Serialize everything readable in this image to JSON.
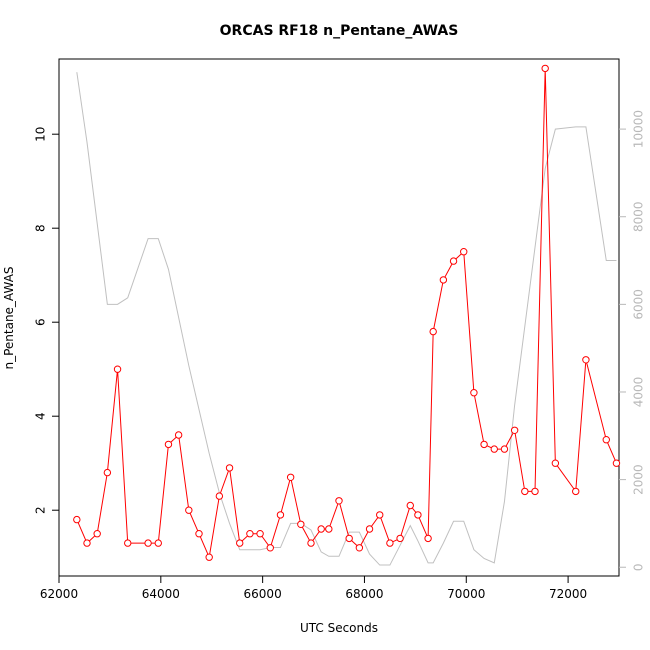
{
  "chart_data": {
    "type": "line",
    "title": "ORCAS RF18 n_Pentane_AWAS",
    "xlabel": "UTC Seconds",
    "ylabel": "n_Pentane_AWAS",
    "xlim": [
      62000,
      73000
    ],
    "ylim": [
      0.6,
      11.6
    ],
    "y2lim": [
      -200,
      11600
    ],
    "x_ticks": [
      62000,
      64000,
      66000,
      68000,
      70000,
      72000
    ],
    "y_ticks": [
      2,
      4,
      6,
      8,
      10
    ],
    "y2_ticks": [
      0,
      2000,
      4000,
      6000,
      8000,
      10000
    ],
    "grid": false,
    "legend": "none",
    "series": [
      {
        "axis": "left",
        "color": "#ff0000",
        "style": "line+open-circle",
        "x": [
          62350,
          62550,
          62750,
          62950,
          63150,
          63350,
          63750,
          63950,
          64150,
          64350,
          64550,
          64750,
          64950,
          65150,
          65350,
          65550,
          65750,
          65950,
          66150,
          66350,
          66550,
          66750,
          66950,
          67150,
          67300,
          67500,
          67700,
          67900,
          68100,
          68300,
          68500,
          68700,
          68900,
          69050,
          69250,
          69350,
          69550,
          69750,
          69950,
          70150,
          70350,
          70550,
          70750,
          70950,
          71150,
          71350,
          71550,
          71750,
          72150,
          72350,
          72750,
          72950
        ],
        "y": [
          1.8,
          1.3,
          1.5,
          2.8,
          5.0,
          1.3,
          1.3,
          1.3,
          3.4,
          3.6,
          2.0,
          1.5,
          1.0,
          2.3,
          2.9,
          1.3,
          1.5,
          1.5,
          1.2,
          1.9,
          2.7,
          1.7,
          1.3,
          1.6,
          1.6,
          2.2,
          1.4,
          1.2,
          1.6,
          1.9,
          1.3,
          1.4,
          2.1,
          1.9,
          1.4,
          5.8,
          6.9,
          7.3,
          7.5,
          4.5,
          3.4,
          3.3,
          3.3,
          3.7,
          2.4,
          2.4,
          11.4,
          3.0,
          2.4,
          5.2,
          3.5,
          3.0
        ]
      },
      {
        "axis": "right",
        "color": "#c0c0c0",
        "style": "line",
        "x": [
          62350,
          62550,
          62950,
          63150,
          63350,
          63750,
          63950,
          64150,
          64350,
          64550,
          64750,
          64950,
          65150,
          65350,
          65550,
          65750,
          65950,
          66150,
          66350,
          66550,
          66750,
          66950,
          67150,
          67300,
          67500,
          67700,
          67900,
          68100,
          68300,
          68500,
          68700,
          68900,
          69050,
          69250,
          69350,
          69550,
          69750,
          69950,
          70150,
          70350,
          70550,
          70750,
          70950,
          71150,
          71350,
          71550,
          71750,
          72150,
          72350,
          72750,
          72950
        ],
        "y": [
          11300,
          9700,
          6000,
          6000,
          6150,
          7500,
          7500,
          6800,
          5700,
          4600,
          3600,
          2600,
          1700,
          1000,
          400,
          400,
          400,
          450,
          450,
          1000,
          1000,
          850,
          350,
          250,
          250,
          800,
          800,
          300,
          50,
          50,
          500,
          950,
          600,
          100,
          100,
          550,
          1050,
          1050,
          400,
          200,
          100,
          1500,
          3700,
          5500,
          7300,
          9100,
          10000,
          10050,
          10050,
          7000,
          7000
        ]
      }
    ]
  }
}
